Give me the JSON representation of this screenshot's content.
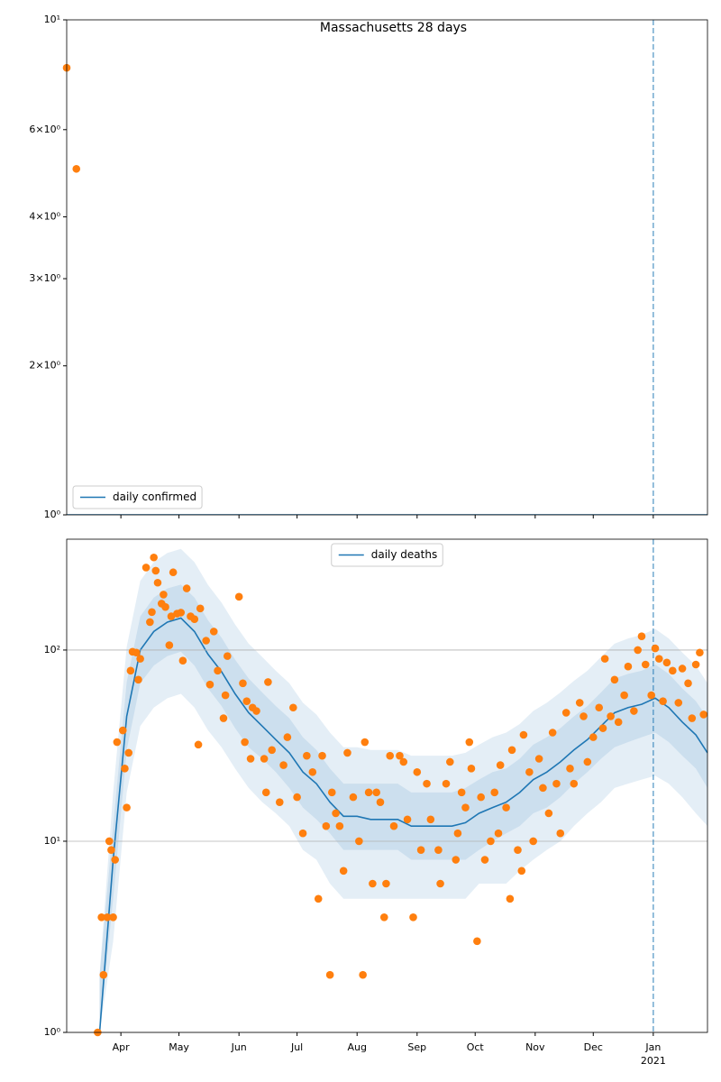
{
  "chart_data": [
    {
      "type": "line",
      "title": "Massachusetts 28 days",
      "log_y": true,
      "grid": false,
      "legend": "lower left",
      "xlim": [
        "2020-03-04",
        "2021-01-29"
      ],
      "xticks": [
        "2020-04-01",
        "2020-05-01",
        "2020-06-01",
        "2020-07-01",
        "2020-08-01",
        "2020-09-01",
        "2020-10-01",
        "2020-11-01",
        "2020-12-01",
        "2021-01-01"
      ],
      "ylim": [
        1,
        10
      ],
      "yticks": [
        {
          "value": 1,
          "label": "10⁰"
        },
        {
          "value": 2,
          "label": "2×10⁰"
        },
        {
          "value": 3,
          "label": "3×10⁰"
        },
        {
          "value": 4,
          "label": "4×10⁰"
        },
        {
          "value": 6,
          "label": "6×10⁰"
        },
        {
          "value": 10,
          "label": "10¹"
        }
      ],
      "vline": "2021-01-01",
      "vline_color": "#1f77b4",
      "series": [
        {
          "name": "daily confirmed",
          "color": "#1f77b4",
          "x": [
            "2020-03-04",
            "2021-01-29"
          ],
          "values": [
            1,
            1
          ]
        }
      ],
      "points": {
        "color": "#ff7f0e",
        "x": [
          "2020-03-04",
          "2020-03-09"
        ],
        "values": [
          8,
          5
        ]
      }
    },
    {
      "type": "line",
      "log_y": true,
      "grid": true,
      "legend": "upper center",
      "xlim": [
        "2020-03-04",
        "2021-01-29"
      ],
      "xticks": [
        {
          "value": "2020-04-01",
          "label": "Apr"
        },
        {
          "value": "2020-05-01",
          "label": "May"
        },
        {
          "value": "2020-06-01",
          "label": "Jun"
        },
        {
          "value": "2020-07-01",
          "label": "Jul"
        },
        {
          "value": "2020-08-01",
          "label": "Aug"
        },
        {
          "value": "2020-09-01",
          "label": "Sep"
        },
        {
          "value": "2020-10-01",
          "label": "Oct"
        },
        {
          "value": "2020-11-01",
          "label": "Nov"
        },
        {
          "value": "2020-12-01",
          "label": "Dec"
        },
        {
          "value": "2021-01-01",
          "label": "Jan",
          "sublabel": "2021"
        }
      ],
      "ylim": [
        1,
        380
      ],
      "yticks": [
        {
          "value": 1,
          "label": "10⁰"
        },
        {
          "value": 10,
          "label": "10¹"
        },
        {
          "value": 100,
          "label": "10²"
        }
      ],
      "vline": "2021-01-01",
      "vline_color": "#1f77b4",
      "series": [
        {
          "name": "daily deaths",
          "color": "#1f77b4",
          "x": [
            "2020-03-21",
            "2020-03-28",
            "2020-04-04",
            "2020-04-11",
            "2020-04-18",
            "2020-04-25",
            "2020-05-02",
            "2020-05-09",
            "2020-05-16",
            "2020-05-23",
            "2020-05-30",
            "2020-06-06",
            "2020-06-13",
            "2020-06-20",
            "2020-06-27",
            "2020-07-04",
            "2020-07-11",
            "2020-07-18",
            "2020-07-25",
            "2020-08-01",
            "2020-08-08",
            "2020-08-15",
            "2020-08-22",
            "2020-08-29",
            "2020-09-05",
            "2020-09-12",
            "2020-09-19",
            "2020-09-26",
            "2020-10-03",
            "2020-10-10",
            "2020-10-17",
            "2020-10-24",
            "2020-10-31",
            "2020-11-07",
            "2020-11-14",
            "2020-11-21",
            "2020-11-28",
            "2020-12-05",
            "2020-12-12",
            "2020-12-19",
            "2020-12-26",
            "2021-01-02",
            "2021-01-09",
            "2021-01-16",
            "2021-01-23",
            "2021-01-29"
          ],
          "values": [
            1,
            8,
            45,
            100,
            125,
            140,
            147,
            125,
            95,
            77,
            59,
            47,
            40,
            34,
            29,
            23,
            20,
            16,
            13.5,
            13.5,
            13,
            13,
            13,
            12,
            12,
            12,
            12,
            12.5,
            14,
            15,
            16,
            18,
            21,
            23,
            26,
            30,
            34,
            40,
            47,
            50,
            52,
            56,
            50,
            42,
            36,
            29
          ]
        }
      ],
      "bands": [
        {
          "color": "#1f77b4",
          "lower": [
            1,
            3,
            18,
            40,
            50,
            56,
            59,
            50,
            38,
            31,
            24,
            19,
            16,
            14,
            12,
            9,
            8,
            6,
            5,
            5,
            5,
            5,
            5,
            5,
            5,
            5,
            5,
            5,
            6,
            6,
            6,
            7,
            8,
            9,
            10,
            12,
            14,
            16,
            19,
            20,
            21,
            22,
            20,
            17,
            14,
            12
          ],
          "upper": [
            2,
            18,
            104,
            230,
            288,
            322,
            338,
            288,
            219,
            177,
            136,
            108,
            92,
            78,
            67,
            53,
            46,
            37,
            31,
            31,
            30,
            30,
            30,
            28,
            28,
            28,
            28,
            29,
            32,
            35,
            37,
            41,
            48,
            53,
            60,
            69,
            78,
            92,
            108,
            115,
            120,
            129,
            115,
            97,
            83,
            67
          ]
        },
        {
          "color": "#1f77b4",
          "lower": [
            1,
            5,
            30,
            67,
            83,
            93,
            98,
            83,
            63,
            51,
            39,
            31,
            27,
            23,
            19,
            15,
            13,
            11,
            9,
            9,
            9,
            9,
            9,
            8,
            8,
            8,
            8,
            8,
            9,
            10,
            11,
            12,
            14,
            15,
            17,
            20,
            23,
            27,
            31,
            33,
            35,
            37,
            33,
            28,
            24,
            19
          ],
          "upper": [
            2,
            12,
            68,
            150,
            188,
            210,
            220,
            188,
            143,
            116,
            89,
            71,
            60,
            51,
            44,
            35,
            30,
            24,
            20,
            20,
            20,
            20,
            20,
            18,
            18,
            18,
            18,
            19,
            21,
            23,
            24,
            27,
            32,
            35,
            39,
            45,
            51,
            60,
            71,
            75,
            78,
            84,
            75,
            63,
            54,
            44
          ]
        }
      ],
      "points": {
        "color": "#ff7f0e",
        "x": [
          "2020-03-20",
          "2020-03-22",
          "2020-03-23",
          "2020-03-25",
          "2020-03-26",
          "2020-03-27",
          "2020-03-28",
          "2020-03-29",
          "2020-03-30",
          "2020-04-02",
          "2020-04-03",
          "2020-04-04",
          "2020-04-05",
          "2020-04-06",
          "2020-04-07",
          "2020-04-09",
          "2020-04-10",
          "2020-04-11",
          "2020-04-14",
          "2020-04-16",
          "2020-04-17",
          "2020-04-18",
          "2020-04-19",
          "2020-04-20",
          "2020-04-22",
          "2020-04-23",
          "2020-04-24",
          "2020-04-26",
          "2020-04-27",
          "2020-04-28",
          "2020-04-30",
          "2020-05-02",
          "2020-05-03",
          "2020-05-05",
          "2020-05-07",
          "2020-05-09",
          "2020-05-11",
          "2020-05-12",
          "2020-05-15",
          "2020-05-17",
          "2020-05-19",
          "2020-05-21",
          "2020-05-24",
          "2020-05-25",
          "2020-05-26",
          "2020-06-01",
          "2020-06-03",
          "2020-06-04",
          "2020-06-05",
          "2020-06-07",
          "2020-06-08",
          "2020-06-10",
          "2020-06-14",
          "2020-06-15",
          "2020-06-16",
          "2020-06-18",
          "2020-06-22",
          "2020-06-24",
          "2020-06-26",
          "2020-06-29",
          "2020-07-01",
          "2020-07-04",
          "2020-07-06",
          "2020-07-09",
          "2020-07-12",
          "2020-07-14",
          "2020-07-16",
          "2020-07-18",
          "2020-07-19",
          "2020-07-21",
          "2020-07-23",
          "2020-07-25",
          "2020-07-27",
          "2020-07-30",
          "2020-08-02",
          "2020-08-04",
          "2020-08-05",
          "2020-08-07",
          "2020-08-09",
          "2020-08-11",
          "2020-08-13",
          "2020-08-15",
          "2020-08-16",
          "2020-08-18",
          "2020-08-20",
          "2020-08-23",
          "2020-08-25",
          "2020-08-27",
          "2020-08-30",
          "2020-09-01",
          "2020-09-03",
          "2020-09-06",
          "2020-09-08",
          "2020-09-12",
          "2020-09-13",
          "2020-09-16",
          "2020-09-18",
          "2020-09-21",
          "2020-09-22",
          "2020-09-24",
          "2020-09-26",
          "2020-09-28",
          "2020-09-29",
          "2020-10-02",
          "2020-10-04",
          "2020-10-06",
          "2020-10-09",
          "2020-10-11",
          "2020-10-13",
          "2020-10-14",
          "2020-10-17",
          "2020-10-19",
          "2020-10-20",
          "2020-10-23",
          "2020-10-25",
          "2020-10-26",
          "2020-10-29",
          "2020-10-31",
          "2020-11-03",
          "2020-11-05",
          "2020-11-08",
          "2020-11-10",
          "2020-11-12",
          "2020-11-14",
          "2020-11-17",
          "2020-11-19",
          "2020-11-21",
          "2020-11-24",
          "2020-11-26",
          "2020-11-28",
          "2020-12-01",
          "2020-12-04",
          "2020-12-06",
          "2020-12-07",
          "2020-12-10",
          "2020-12-12",
          "2020-12-14",
          "2020-12-17",
          "2020-12-19",
          "2020-12-22",
          "2020-12-24",
          "2020-12-26",
          "2020-12-28",
          "2020-12-31",
          "2021-01-02",
          "2021-01-04",
          "2021-01-06",
          "2021-01-08",
          "2021-01-11",
          "2021-01-14",
          "2021-01-16",
          "2021-01-19",
          "2021-01-21",
          "2021-01-23",
          "2021-01-25",
          "2021-01-27"
        ],
        "values": [
          1,
          4,
          2,
          4,
          10,
          9,
          4,
          8,
          33,
          38,
          24,
          15,
          29,
          78,
          98,
          97,
          70,
          90,
          270,
          140,
          158,
          305,
          260,
          225,
          175,
          195,
          168,
          106,
          150,
          255,
          155,
          157,
          88,
          210,
          150,
          145,
          32,
          165,
          112,
          66,
          125,
          78,
          44,
          58,
          93,
          190,
          67,
          33,
          54,
          27,
          50,
          48,
          27,
          18,
          68,
          30,
          16,
          25,
          35,
          50,
          17,
          11,
          28,
          23,
          5,
          28,
          12,
          2,
          18,
          14,
          12,
          7,
          29,
          17,
          10,
          2,
          33,
          18,
          6,
          18,
          16,
          4,
          6,
          28,
          12,
          28,
          26,
          13,
          4,
          23,
          9,
          20,
          13,
          9,
          6,
          20,
          26,
          8,
          11,
          18,
          15,
          33,
          24,
          3,
          17,
          8,
          10,
          18,
          11,
          25,
          15,
          5,
          30,
          9,
          7,
          36,
          23,
          10,
          27,
          19,
          14,
          37,
          20,
          11,
          47,
          24,
          20,
          53,
          45,
          26,
          35,
          50,
          39,
          90,
          45,
          70,
          42,
          58,
          82,
          48,
          100,
          118,
          84,
          58,
          102,
          90,
          54,
          86,
          78,
          53,
          80,
          67,
          44,
          84,
          97,
          46
        ]
      }
    }
  ]
}
